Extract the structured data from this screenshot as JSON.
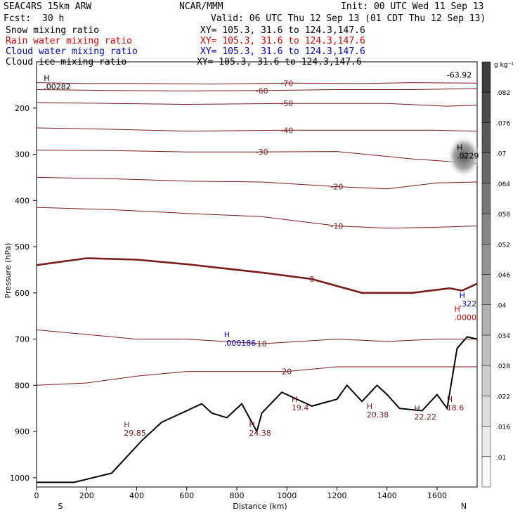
{
  "header": {
    "model": "SEAC4RS 15km ARW",
    "org": "NCAR/MMM",
    "init": "Init: 00 UTC Wed 11 Sep 13",
    "fcst_label": "Fcst:",
    "fcst_value": "30 h",
    "valid": "Valid: 06 UTC Thu 12 Sep 13 (01 CDT Thu 12 Sep 13)"
  },
  "fields": [
    {
      "name": "Snow mixing ratio",
      "xy": "XY= 105.3, 31.6 to 124.3,147.6",
      "color": "#000000"
    },
    {
      "name": "Rain water mixing ratio",
      "xy": "XY= 105.3, 31.6 to 124.3,147.6",
      "color": "#d80000"
    },
    {
      "name": "Cloud water mixing ratio",
      "xy": "XY= 105.3, 31.6 to 124.3,147.6",
      "color": "#0000c8"
    },
    {
      "name": "Cloud ice mixing ratio",
      "xy": "XY= 105.3, 31.6 to 124.3,147.6",
      "color": "#000000"
    }
  ],
  "chart_data": {
    "type": "cross-section contour",
    "xlabel": "Distance (km)",
    "ylabel": "Pressure (hPa)",
    "xlim": [
      0,
      1760
    ],
    "ylim": [
      1020,
      100
    ],
    "x_ticks": [
      0,
      200,
      400,
      600,
      800,
      1000,
      1200,
      1400,
      1600
    ],
    "y_ticks": [
      200,
      300,
      400,
      500,
      600,
      700,
      800,
      900,
      1000
    ],
    "endpoints": {
      "left": "S",
      "right": "N"
    },
    "colorbar": {
      "unit": "g kg⁻¹",
      "levels": [
        ".01",
        ".016",
        ".022",
        ".028",
        ".034",
        ".04",
        ".046",
        ".052",
        ".058",
        ".064",
        ".07",
        ".076",
        ".082"
      ]
    },
    "temperature_contours": [
      {
        "value": -70,
        "label": "-70",
        "color": "#7a1a1a",
        "points": [
          [
            0,
            145
          ],
          [
            200,
            147
          ],
          [
            400,
            147
          ],
          [
            700,
            148
          ],
          [
            1000,
            146
          ],
          [
            1300,
            147
          ],
          [
            1500,
            145
          ],
          [
            1760,
            146
          ]
        ]
      },
      {
        "value": -60,
        "label": "-60",
        "color": "#7a1a1a",
        "points": [
          [
            0,
            160
          ],
          [
            300,
            162
          ],
          [
            600,
            163
          ],
          [
            900,
            162
          ],
          [
            1200,
            160
          ],
          [
            1500,
            160
          ],
          [
            1760,
            158
          ]
        ]
      },
      {
        "value": -50,
        "label": "-50",
        "color": "#7a1a1a",
        "points": [
          [
            0,
            188
          ],
          [
            300,
            190
          ],
          [
            600,
            192
          ],
          [
            1000,
            190
          ],
          [
            1400,
            190
          ],
          [
            1640,
            196
          ],
          [
            1760,
            194
          ]
        ]
      },
      {
        "value": -40,
        "label": "-40",
        "color": "#7a1a1a",
        "points": [
          [
            0,
            243
          ],
          [
            300,
            246
          ],
          [
            600,
            250
          ],
          [
            1000,
            248
          ],
          [
            1400,
            248
          ],
          [
            1580,
            248
          ],
          [
            1760,
            250
          ]
        ]
      },
      {
        "value": -30,
        "label": "-30",
        "color": "#7a1a1a",
        "points": [
          [
            0,
            291
          ],
          [
            300,
            292
          ],
          [
            600,
            295
          ],
          [
            900,
            295
          ],
          [
            1200,
            294
          ],
          [
            1500,
            310
          ],
          [
            1760,
            320
          ]
        ]
      },
      {
        "value": -20,
        "label": "-20",
        "color": "#7a1a1a",
        "points": [
          [
            0,
            350
          ],
          [
            300,
            353
          ],
          [
            600,
            358
          ],
          [
            900,
            360
          ],
          [
            1200,
            370
          ],
          [
            1400,
            375
          ],
          [
            1600,
            362
          ],
          [
            1760,
            360
          ]
        ]
      },
      {
        "value": -10,
        "label": "-10",
        "color": "#7a1a1a",
        "points": [
          [
            0,
            415
          ],
          [
            300,
            420
          ],
          [
            600,
            428
          ],
          [
            900,
            435
          ],
          [
            1200,
            455
          ],
          [
            1400,
            460
          ],
          [
            1600,
            458
          ],
          [
            1760,
            455
          ]
        ]
      },
      {
        "value": 0,
        "label": "0",
        "color": "#7a1a1a",
        "bold": true,
        "points": [
          [
            0,
            540
          ],
          [
            200,
            525
          ],
          [
            400,
            528
          ],
          [
            600,
            538
          ],
          [
            900,
            556
          ],
          [
            1100,
            570
          ],
          [
            1300,
            600
          ],
          [
            1500,
            600
          ],
          [
            1650,
            590
          ],
          [
            1700,
            595
          ],
          [
            1760,
            580
          ]
        ]
      },
      {
        "value": 10,
        "label": "10",
        "color": "#7a1a1a",
        "points": [
          [
            0,
            680
          ],
          [
            200,
            690
          ],
          [
            400,
            700
          ],
          [
            600,
            700
          ],
          [
            900,
            710
          ],
          [
            1200,
            700
          ],
          [
            1400,
            705
          ],
          [
            1600,
            700
          ],
          [
            1760,
            700
          ]
        ]
      },
      {
        "value": 20,
        "label": "20",
        "color": "#7a1a1a",
        "points": [
          [
            0,
            800
          ],
          [
            200,
            795
          ],
          [
            400,
            780
          ],
          [
            600,
            770
          ],
          [
            800,
            770
          ],
          [
            1000,
            770
          ],
          [
            1200,
            760
          ],
          [
            1400,
            760
          ],
          [
            1600,
            760
          ],
          [
            1760,
            760
          ]
        ]
      }
    ],
    "terrain": {
      "color": "#000000",
      "points": [
        [
          0,
          1010
        ],
        [
          150,
          1010
        ],
        [
          300,
          990
        ],
        [
          420,
          920
        ],
        [
          500,
          880
        ],
        [
          580,
          860
        ],
        [
          660,
          840
        ],
        [
          700,
          860
        ],
        [
          760,
          870
        ],
        [
          820,
          840
        ],
        [
          880,
          900
        ],
        [
          900,
          860
        ],
        [
          980,
          815
        ],
        [
          1040,
          830
        ],
        [
          1100,
          845
        ],
        [
          1200,
          830
        ],
        [
          1240,
          800
        ],
        [
          1300,
          835
        ],
        [
          1360,
          800
        ],
        [
          1400,
          820
        ],
        [
          1450,
          850
        ],
        [
          1540,
          855
        ],
        [
          1600,
          820
        ],
        [
          1640,
          850
        ],
        [
          1680,
          720
        ],
        [
          1720,
          695
        ],
        [
          1760,
          700
        ]
      ]
    },
    "extrema_labels": [
      {
        "marker": "H",
        "value": ".00282",
        "x": 40,
        "p": 150,
        "color": "#000000"
      },
      {
        "marker": "H",
        "value": ".0229",
        "x": 1690,
        "p": 300,
        "color": "#000000"
      },
      {
        "marker": "H",
        "value": ".0000",
        "x": 1680,
        "p": 650,
        "color": "#d80000"
      },
      {
        "marker": "H",
        "value": ".322",
        "x": 1700,
        "p": 620,
        "color": "#0000c8"
      },
      {
        "marker": "H",
        "value": ".000186",
        "x": 760,
        "p": 705,
        "color": "#0000c8"
      },
      {
        "marker": "H",
        "value": "29.85",
        "x": 360,
        "p": 900,
        "color": "#7a1a1a"
      },
      {
        "marker": "H",
        "value": "24.38",
        "x": 860,
        "p": 900,
        "color": "#7a1a1a"
      },
      {
        "marker": "H",
        "value": "19.4",
        "x": 1030,
        "p": 845,
        "color": "#7a1a1a"
      },
      {
        "marker": "H",
        "value": "20.38",
        "x": 1330,
        "p": 860,
        "color": "#7a1a1a"
      },
      {
        "marker": "H",
        "value": "22.22",
        "x": 1520,
        "p": 865,
        "color": "#7a1a1a"
      },
      {
        "marker": "H",
        "value": "18.6",
        "x": 1650,
        "p": 845,
        "color": "#7a1a1a"
      },
      {
        "marker": "",
        "value": "-63.92",
        "x": 1650,
        "p": 125,
        "color": "#000000"
      }
    ]
  }
}
